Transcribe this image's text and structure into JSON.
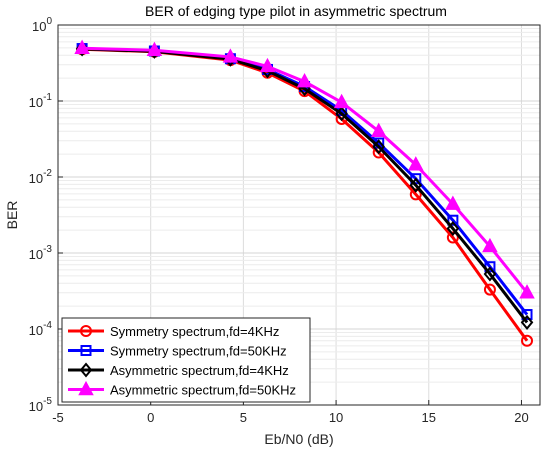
{
  "chart_data": {
    "type": "line",
    "title": "BER of edging type pilot in asymmetric spectrum",
    "xlabel": "Eb/N0 (dB)",
    "ylabel": "BER",
    "xlim": [
      -5,
      21
    ],
    "ylim": [
      1e-05,
      1
    ],
    "yscale": "log",
    "xticks": [
      "-5",
      "0",
      "5",
      "10",
      "15",
      "20"
    ],
    "yticks": [
      {
        "base": "10",
        "exp": "-5",
        "value": 1e-05
      },
      {
        "base": "10",
        "exp": "-4",
        "value": 0.0001
      },
      {
        "base": "10",
        "exp": "-3",
        "value": 0.001
      },
      {
        "base": "10",
        "exp": "-2",
        "value": 0.01
      },
      {
        "base": "10",
        "exp": "-1",
        "value": 0.1
      },
      {
        "base": "10",
        "exp": "0",
        "value": 1
      }
    ],
    "grid": true,
    "legend_position": "bottom-left",
    "x": [
      -3.7,
      0.2,
      4.3,
      6.3,
      8.3,
      10.3,
      12.3,
      14.3,
      16.3,
      18.3,
      20.3
    ],
    "series": [
      {
        "name": "Symmetry spectrum,fd=4KHz",
        "color": "#ff0000",
        "marker": "circle",
        "values": [
          0.48,
          0.445,
          0.345,
          0.235,
          0.135,
          0.058,
          0.021,
          0.0059,
          0.0016,
          0.00033,
          7e-05
        ]
      },
      {
        "name": "Symmetry spectrum,fd=50KHz",
        "color": "#0000ff",
        "marker": "square",
        "values": [
          0.49,
          0.455,
          0.36,
          0.26,
          0.155,
          0.075,
          0.028,
          0.0095,
          0.0027,
          0.00066,
          0.000155
        ]
      },
      {
        "name": "Asymmetric spectrum,fd=4KHz",
        "color": "#000000",
        "marker": "diamond",
        "values": [
          0.485,
          0.45,
          0.355,
          0.25,
          0.145,
          0.068,
          0.025,
          0.0078,
          0.0021,
          0.00053,
          0.000122
        ]
      },
      {
        "name": "Asymmetric spectrum,fd=50KHz",
        "color": "#ff00ff",
        "marker": "triangle",
        "values": [
          0.495,
          0.465,
          0.38,
          0.285,
          0.18,
          0.096,
          0.04,
          0.0145,
          0.0044,
          0.00122,
          0.0003
        ]
      }
    ]
  }
}
